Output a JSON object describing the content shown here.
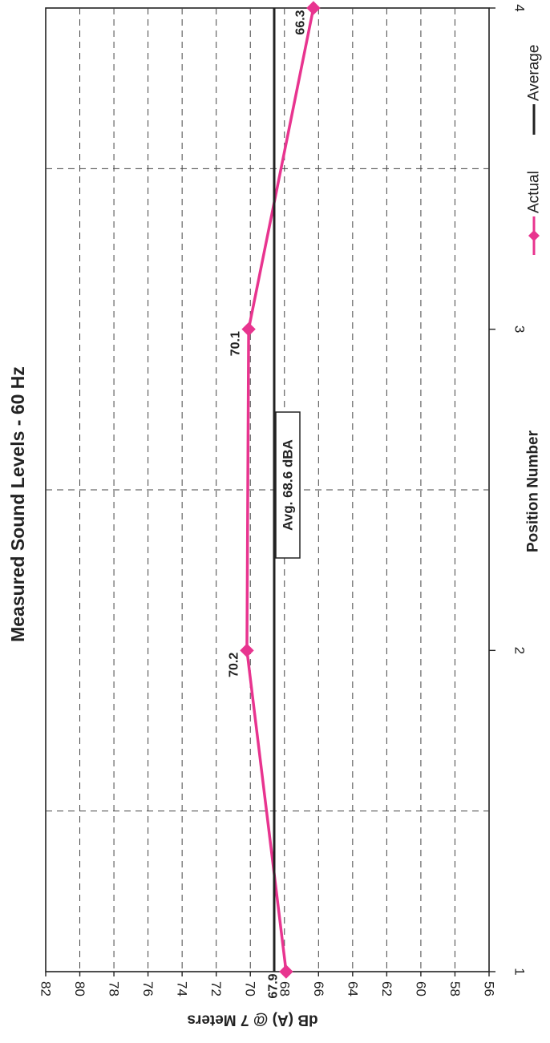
{
  "chart_data": {
    "type": "line",
    "title": "Measured Sound Levels - 60 Hz",
    "xlabel": "Position Number",
    "ylabel": "dB (A) @ 7 Meters",
    "x": [
      1,
      2,
      3,
      4
    ],
    "xlim": [
      1,
      4
    ],
    "ylim": [
      56,
      82
    ],
    "xticks": [
      "1",
      "2",
      "3",
      "4"
    ],
    "yticks": [
      "56",
      "58",
      "60",
      "62",
      "64",
      "66",
      "68",
      "70",
      "72",
      "74",
      "76",
      "78",
      "80",
      "82"
    ],
    "grid": true,
    "series": [
      {
        "name": "Actual",
        "values": [
          67.9,
          70.2,
          70.1,
          66.3
        ],
        "data_labels": [
          "67.9",
          "70.2",
          "70.1",
          "66.3"
        ],
        "color": "#e8348f",
        "marker": "diamond"
      },
      {
        "name": "Average",
        "values": [
          68.6,
          68.6,
          68.6,
          68.6
        ],
        "color": "#222222"
      }
    ],
    "annotations": [
      {
        "text": "Avg. 68.6 dBA",
        "x": 2.5,
        "y": 68.6
      }
    ],
    "legend": "bottom-right",
    "orientation": "rotated-90-clockwise"
  }
}
